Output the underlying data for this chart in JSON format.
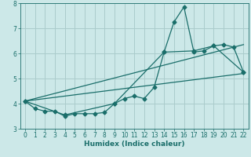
{
  "title": "",
  "xlabel": "Humidex (Indice chaleur)",
  "ylabel": "",
  "xlim": [
    -0.5,
    22.5
  ],
  "ylim": [
    3,
    8
  ],
  "yticks": [
    3,
    4,
    5,
    6,
    7,
    8
  ],
  "xticks": [
    0,
    1,
    2,
    3,
    4,
    5,
    6,
    7,
    8,
    9,
    10,
    11,
    12,
    13,
    14,
    15,
    16,
    17,
    18,
    19,
    20,
    21,
    22
  ],
  "bg_color": "#cce8e8",
  "grid_color": "#aacccc",
  "line_color": "#1a6e6a",
  "series1_x": [
    0,
    1,
    2,
    3,
    4,
    5,
    6,
    7,
    8,
    9,
    10,
    11,
    12,
    13,
    14,
    15,
    16,
    17,
    18,
    19,
    20,
    21,
    22
  ],
  "series1_y": [
    4.1,
    3.8,
    3.7,
    3.7,
    3.5,
    3.6,
    3.6,
    3.6,
    3.65,
    4.0,
    4.2,
    4.3,
    4.2,
    4.65,
    6.05,
    7.25,
    7.85,
    6.05,
    6.1,
    6.3,
    6.35,
    6.25,
    5.25
  ],
  "series2_x": [
    0,
    22
  ],
  "series2_y": [
    4.1,
    5.2
  ],
  "series3_x": [
    0,
    22
  ],
  "series3_y": [
    4.1,
    6.35
  ],
  "series4_x": [
    0,
    4,
    9,
    14,
    17,
    19,
    22
  ],
  "series4_y": [
    4.1,
    3.55,
    4.0,
    6.05,
    6.1,
    6.3,
    5.25
  ]
}
